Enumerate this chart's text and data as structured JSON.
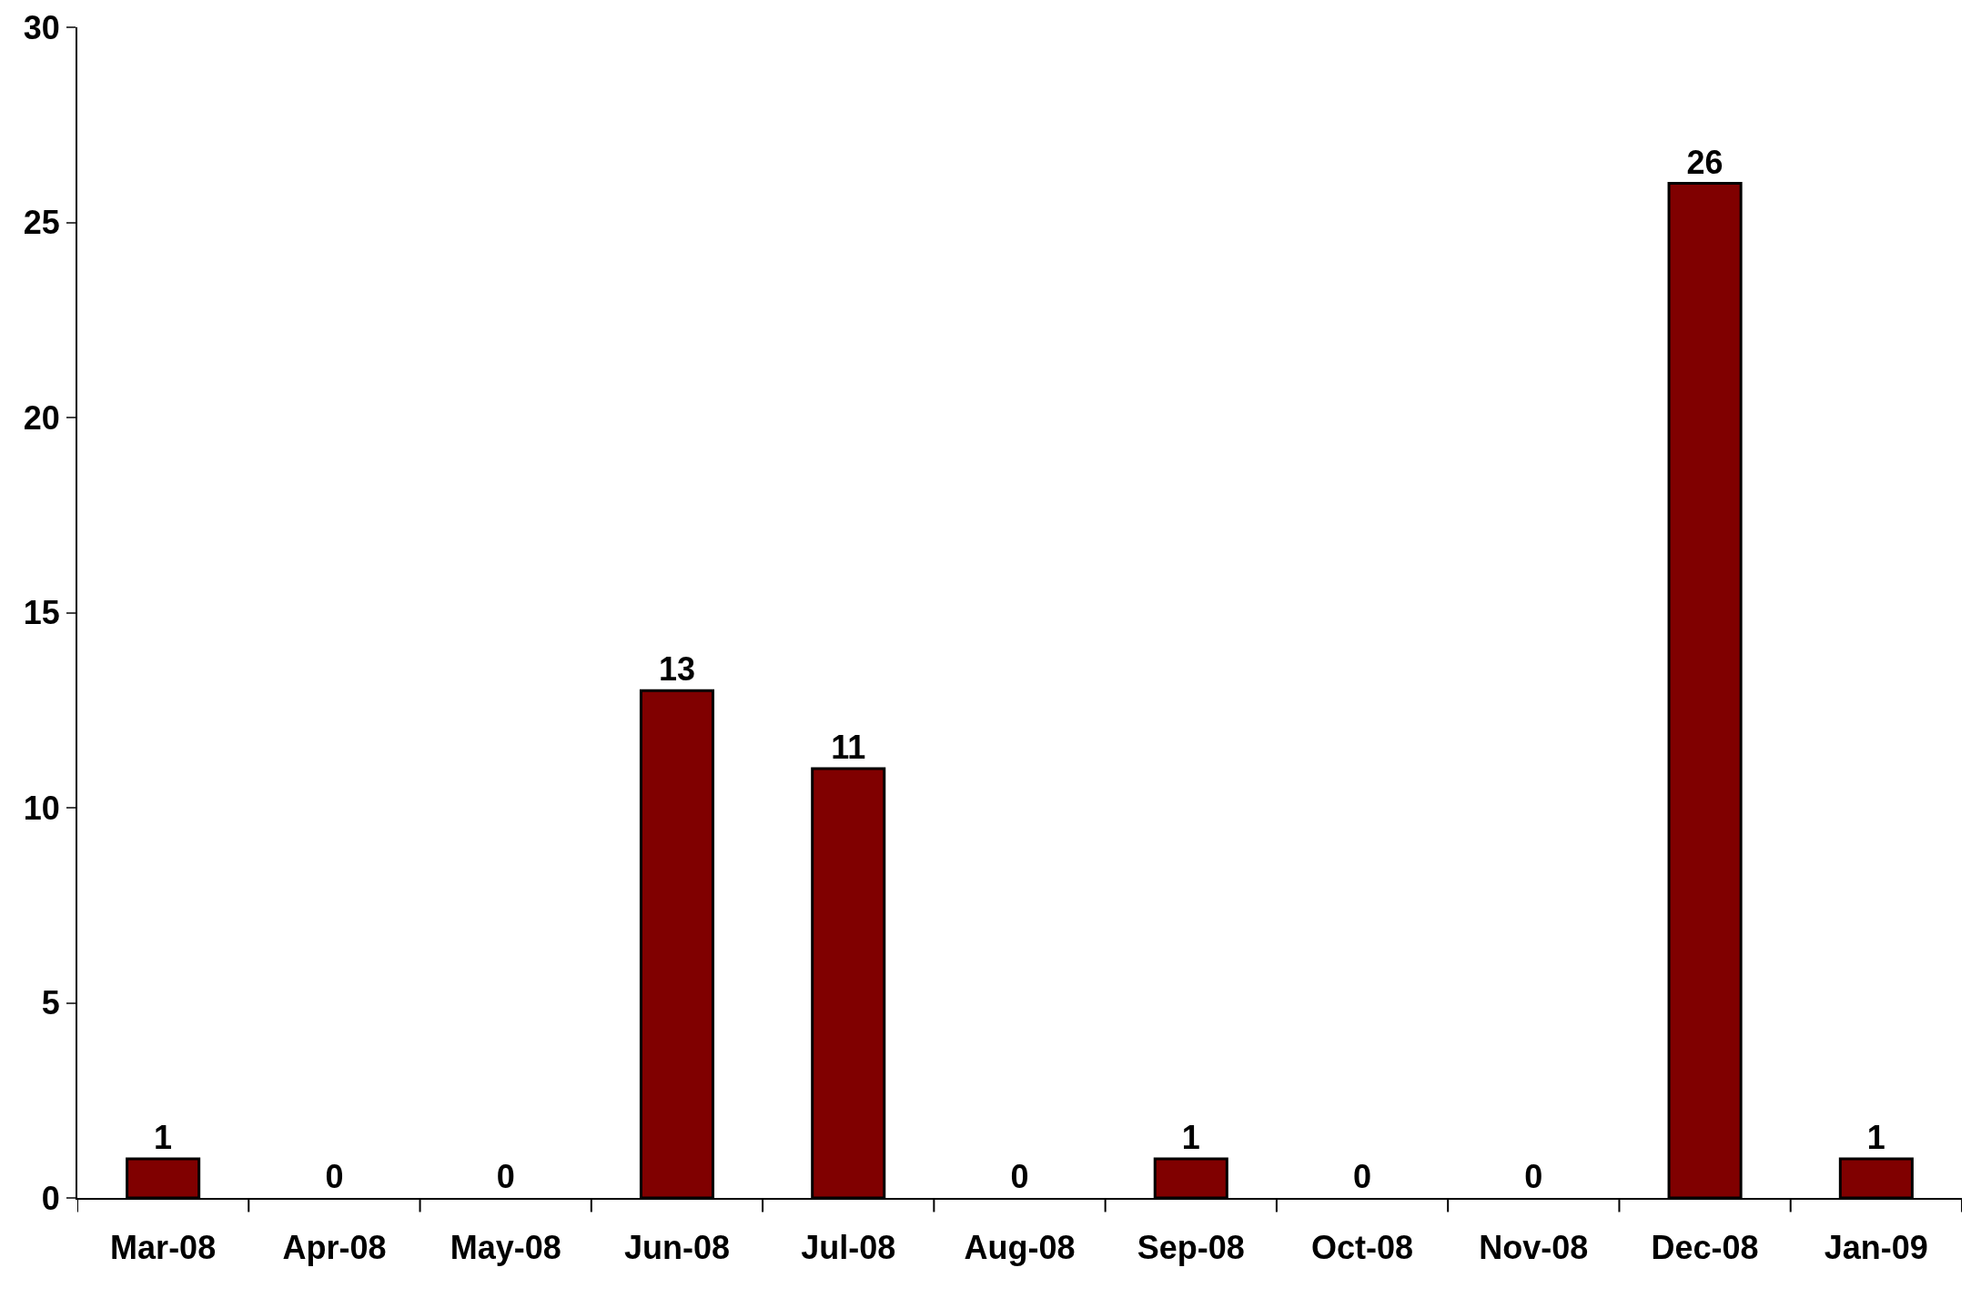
{
  "chart_data": {
    "type": "bar",
    "categories": [
      "Mar-08",
      "Apr-08",
      "May-08",
      "Jun-08",
      "Jul-08",
      "Aug-08",
      "Sep-08",
      "Oct-08",
      "Nov-08",
      "Dec-08",
      "Jan-09"
    ],
    "values": [
      1,
      0,
      0,
      13,
      11,
      0,
      1,
      0,
      0,
      26,
      1
    ],
    "color": "#800000",
    "ylim": [
      0,
      30
    ],
    "yticks": [
      0,
      5,
      10,
      15,
      20,
      25,
      30
    ],
    "legend": false,
    "data_labels": true
  }
}
